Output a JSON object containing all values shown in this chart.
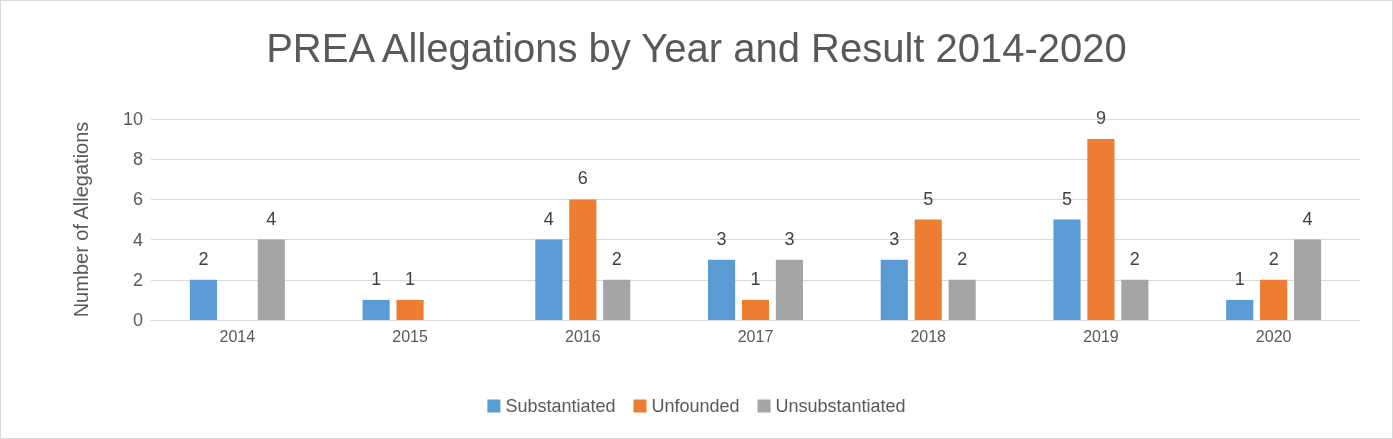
{
  "chart_data": {
    "type": "bar",
    "title": "PREA Allegations by Year and Result 2014-2020",
    "ylabel": "Number of Allegations",
    "categories": [
      "2014",
      "2015",
      "2016",
      "2017",
      "2018",
      "2019",
      "2020"
    ],
    "series": [
      {
        "name": "Substantiated",
        "color": "#5b9bd5",
        "values": [
          2,
          1,
          4,
          3,
          3,
          5,
          1
        ]
      },
      {
        "name": "Unfounded",
        "color": "#ed7d31",
        "values": [
          null,
          1,
          6,
          1,
          5,
          9,
          2
        ]
      },
      {
        "name": "Unsubstantiated",
        "color": "#a5a5a5",
        "values": [
          4,
          null,
          2,
          3,
          2,
          2,
          4
        ]
      }
    ],
    "ylim": [
      0,
      10
    ],
    "yticks": [
      0,
      2,
      4,
      6,
      8,
      10
    ],
    "grid": "y",
    "legend": "bottom",
    "data_labels": true
  }
}
